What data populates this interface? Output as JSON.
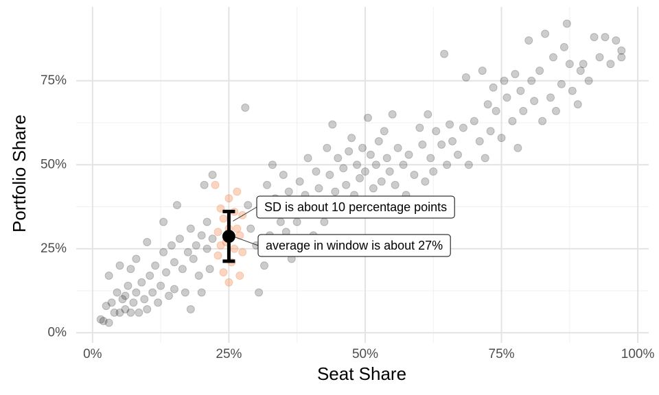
{
  "chart_data": {
    "type": "scatter",
    "x_label": "Seat Share",
    "y_label": "Portfolio Share",
    "xlim": [
      -3,
      102
    ],
    "ylim": [
      -3,
      97
    ],
    "xticks": [
      {
        "value": 0,
        "label": "0%"
      },
      {
        "value": 25,
        "label": "25%"
      },
      {
        "value": 50,
        "label": "50%"
      },
      {
        "value": 75,
        "label": "75%"
      },
      {
        "value": 100,
        "label": "100%"
      }
    ],
    "yticks": [
      {
        "value": 0,
        "label": "0%"
      },
      {
        "value": 25,
        "label": "25%"
      },
      {
        "value": 50,
        "label": "50%"
      },
      {
        "value": 75,
        "label": "75%"
      }
    ],
    "grid": true,
    "series": [
      {
        "color": "#000000",
        "opacity": 0.2,
        "x": [
          1.5,
          2,
          2.5,
          3,
          3,
          3.5,
          4,
          4.5,
          5,
          5,
          5.5,
          6,
          6,
          6.5,
          7,
          7,
          7.5,
          8,
          8,
          8.5,
          9,
          9.5,
          10,
          10,
          10.5,
          11,
          11.5,
          12,
          12.5,
          13,
          13,
          13.5,
          14,
          14.5,
          15,
          15,
          15.5,
          16,
          16.5,
          17,
          17.5,
          18,
          18,
          18.5,
          19,
          19.5,
          20,
          20,
          20.5,
          21,
          21,
          21.5,
          22,
          22,
          28,
          28.5,
          29,
          30,
          30.5,
          31,
          31.5,
          32,
          32.5,
          33,
          33.5,
          34,
          34.5,
          35,
          35.5,
          36,
          36.5,
          37,
          37.5,
          38,
          38.5,
          39,
          39.5,
          40,
          40.5,
          41,
          41.5,
          42,
          42.5,
          43,
          43.5,
          44,
          44.5,
          45,
          45.5,
          46,
          46.5,
          47,
          47.5,
          48,
          48.5,
          49,
          49.5,
          50,
          50.5,
          51,
          51.5,
          52,
          52.5,
          53,
          53.5,
          54,
          54.5,
          55,
          55.5,
          56,
          57,
          57.5,
          58,
          59,
          60,
          60.5,
          61,
          61.5,
          62,
          62.5,
          63,
          64,
          64.5,
          65,
          65.5,
          66,
          67,
          68,
          68.5,
          69,
          70,
          71,
          71.5,
          72,
          72.5,
          73,
          73.5,
          74,
          75,
          75.5,
          76,
          77,
          77.5,
          78,
          78.5,
          79,
          80,
          80.5,
          81,
          82,
          82.5,
          83,
          84,
          84.5,
          85,
          86,
          86.5,
          87,
          87.5,
          88,
          89,
          89.5,
          90,
          91,
          92,
          93,
          94,
          95,
          96,
          97,
          97
        ],
        "values": [
          4,
          3.5,
          8,
          3,
          17,
          9,
          6,
          12,
          6,
          20,
          10,
          11,
          7,
          14,
          6,
          19,
          9,
          12,
          22,
          6,
          15,
          10,
          27,
          7,
          17,
          12,
          20,
          9,
          14,
          33,
          24,
          18,
          11,
          26,
          21,
          13,
          38,
          28,
          19,
          12,
          24,
          31,
          7,
          22,
          26,
          17,
          29,
          12,
          44,
          25,
          33,
          19,
          47,
          28,
          67,
          38,
          31,
          26,
          12,
          36,
          20,
          44,
          29,
          50,
          40,
          24,
          33,
          47,
          30,
          42,
          22,
          38,
          33,
          45,
          27,
          41,
          52,
          36,
          29,
          48,
          43,
          39,
          33,
          55,
          47,
          62,
          42,
          52,
          37,
          49,
          44,
          54,
          58,
          41,
          50,
          46,
          55,
          48,
          64,
          53,
          43,
          50,
          57,
          45,
          60,
          52,
          48,
          65,
          44,
          55,
          50,
          41,
          53,
          47,
          61,
          56,
          45,
          65,
          52,
          48,
          60,
          56,
          83,
          50,
          62,
          57,
          53,
          61,
          76,
          50,
          63,
          57,
          78,
          52,
          68,
          60,
          73,
          66,
          58,
          75,
          70,
          63,
          77,
          55,
          72,
          66,
          87,
          75,
          69,
          78,
          63,
          89,
          70,
          82,
          66,
          74,
          85,
          92,
          80,
          72,
          68,
          78,
          80,
          75,
          88,
          82,
          88,
          80,
          87,
          84,
          82
        ]
      },
      {
        "color": "#f0894f",
        "opacity": 0.35,
        "x": [
          22.5,
          23,
          23,
          23.5,
          24,
          24,
          24.5,
          25,
          25,
          25.5,
          26,
          26,
          26.5,
          27,
          27,
          27.5,
          27.5,
          25,
          23.5,
          26.5
        ],
        "values": [
          44,
          30,
          23,
          37,
          34,
          18,
          27,
          40,
          31,
          21,
          36,
          25,
          42,
          29,
          17,
          35,
          24,
          15,
          26,
          31
        ]
      }
    ],
    "errorbar": {
      "x": 25,
      "value": 28.7,
      "error": 7.4,
      "color": "#000000"
    },
    "annotations": [
      "SD is about 10 percentage points",
      "average in window is about 27%"
    ]
  }
}
